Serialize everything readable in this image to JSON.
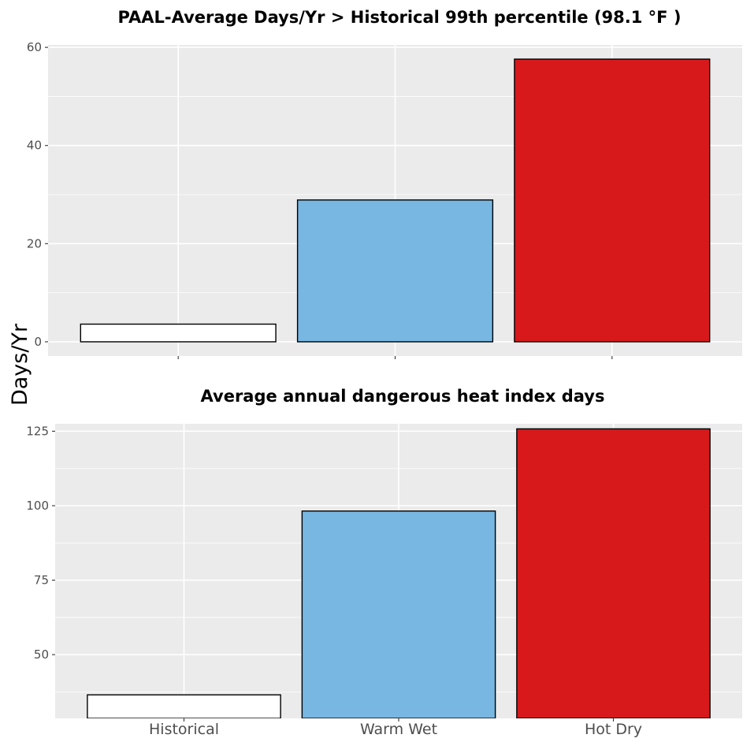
{
  "ylabel": "Days/Yr",
  "colors": {
    "panel_background": "#ebebeb",
    "grid": "#ffffff",
    "bar_outline": "#000000",
    "tick_label": "#4d4d4d"
  },
  "chart_data": [
    {
      "type": "bar",
      "title": "PAAL-Average Days/Yr > Historical 99th percentile (98.1 °F )",
      "categories": [
        "Historical",
        "Warm Wet",
        "Hot Dry"
      ],
      "values": [
        3.6,
        28.9,
        57.6
      ],
      "bar_colors": [
        "#ffffff",
        "#77b7e1",
        "#d7191c"
      ],
      "ylim": [
        -2.9,
        60.5
      ],
      "yticks": [
        0,
        20,
        40,
        60
      ],
      "grid": true,
      "show_x_tick_labels": false
    },
    {
      "type": "bar",
      "title": "Average annual dangerous heat index days",
      "categories": [
        "Historical",
        "Warm Wet",
        "Hot Dry"
      ],
      "values": [
        36.5,
        98.2,
        125.8
      ],
      "bar_colors": [
        "#ffffff",
        "#77b7e1",
        "#d7191c"
      ],
      "ylim": [
        28.6,
        127.5
      ],
      "yticks": [
        50,
        75,
        100,
        125
      ],
      "grid": true,
      "show_x_tick_labels": true
    }
  ]
}
